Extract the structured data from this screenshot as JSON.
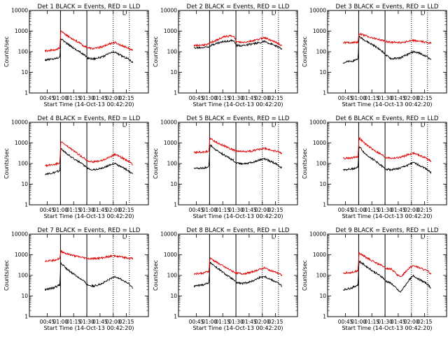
{
  "chart_data": {
    "type": "line",
    "yscale": "log",
    "ylim": [
      1,
      10000
    ],
    "yticks": [
      "1",
      "10",
      "100",
      "1000",
      "10000"
    ],
    "ylabel": "Counts/sec",
    "xlabel": "Start Time (14-Oct-13 00:42:20)",
    "xticks": [
      "00:45",
      "01:00",
      "01:15",
      "01:30",
      "01:45",
      "02:00",
      "02:15"
    ],
    "xlim_minutes": [
      -17.67,
      117.67
    ],
    "tick_minutes": [
      2.67,
      17.67,
      32.67,
      47.67,
      62.67,
      77.67,
      92.67
    ],
    "colors": {
      "events": "#000000",
      "lld": "#e00000"
    },
    "x": [
      0,
      10,
      17,
      18,
      25,
      35,
      45,
      48,
      55,
      65,
      75,
      80,
      85,
      95,
      100
    ],
    "panels": [
      {
        "title": "Det 1 BLACK = Events, RED = LLD",
        "solid_lines": [
          17.67,
          47.67
        ],
        "dotted_lines": [
          77.67,
          96
        ],
        "series": [
          {
            "values": [
              40,
              45,
              55,
              450,
              250,
              130,
              70,
              50,
              45,
              55,
              90,
              95,
              70,
              45,
              30
            ]
          },
          {
            "values": [
              110,
              120,
              150,
              1000,
              600,
              350,
              180,
              160,
              140,
              170,
              260,
              280,
              220,
              150,
              110
            ]
          }
        ]
      },
      {
        "title": "Det 2 BLACK = Events, RED = LLD",
        "solid_lines": [
          17.67,
          47.67
        ],
        "dotted_lines": [
          77.67,
          96
        ],
        "series": [
          {
            "values": [
              150,
              160,
              180,
              200,
              250,
              320,
              350,
              200,
              200,
              230,
              280,
              320,
              260,
              180,
              130
            ]
          },
          {
            "values": [
              200,
              210,
              230,
              270,
              350,
              550,
              600,
              300,
              280,
              330,
              420,
              500,
              400,
              260,
              190
            ]
          }
        ]
      },
      {
        "title": "Det 3 BLACK = Events, RED = LLD",
        "solid_lines": [
          17.67,
          47.67
        ],
        "dotted_lines": [
          77.67,
          96
        ],
        "series": [
          {
            "values": [
              30,
              35,
              45,
              550,
              350,
              200,
              100,
              70,
              45,
              50,
              80,
              100,
              90,
              60,
              40
            ]
          },
          {
            "values": [
              280,
              280,
              290,
              750,
              600,
              450,
              350,
              320,
              290,
              280,
              320,
              350,
              330,
              280,
              260
            ]
          }
        ]
      },
      {
        "title": "Det 4 BLACK = Events, RED = LLD",
        "solid_lines": [
          17.67,
          47.67
        ],
        "dotted_lines": [
          77.67,
          96
        ],
        "series": [
          {
            "values": [
              30,
              35,
              45,
              550,
              300,
              150,
              80,
              60,
              50,
              60,
              90,
              100,
              75,
              45,
              30
            ]
          },
          {
            "values": [
              80,
              90,
              110,
              1200,
              700,
              350,
              180,
              140,
              120,
              140,
              220,
              280,
              220,
              130,
              90
            ]
          }
        ]
      },
      {
        "title": "Det 5 BLACK = Events, RED = LLD",
        "solid_lines": [
          17.67,
          47.67
        ],
        "dotted_lines": [
          77.67,
          96
        ],
        "series": [
          {
            "values": [
              60,
              60,
              70,
              800,
              450,
              250,
              140,
              110,
              100,
              110,
              150,
              170,
              140,
              90,
              60
            ]
          },
          {
            "values": [
              350,
              360,
              400,
              1700,
              1100,
              700,
              450,
              400,
              380,
              400,
              500,
              550,
              480,
              380,
              320
            ]
          }
        ]
      },
      {
        "title": "Det 6 BLACK = Events, RED = LLD",
        "solid_lines": [
          17.67,
          47.67
        ],
        "dotted_lines": [
          77.67,
          96
        ],
        "series": [
          {
            "values": [
              50,
              55,
              65,
              700,
              300,
              150,
              70,
              55,
              50,
              60,
              90,
              110,
              90,
              55,
              35
            ]
          },
          {
            "values": [
              180,
              190,
              220,
              1800,
              900,
              450,
              250,
              200,
              180,
              200,
              280,
              320,
              270,
              180,
              130
            ]
          }
        ]
      },
      {
        "title": "Det 7 BLACK = Events, RED = LLD",
        "solid_lines": [
          17.67,
          47.67
        ],
        "dotted_lines": [
          77.67,
          96
        ],
        "series": [
          {
            "values": [
              20,
              25,
              35,
              400,
              200,
              100,
              50,
              35,
              30,
              40,
              70,
              90,
              70,
              40,
              25
            ]
          },
          {
            "values": [
              500,
              550,
              650,
              1500,
              1100,
              850,
              700,
              650,
              650,
              700,
              850,
              900,
              800,
              700,
              650
            ]
          }
        ]
      },
      {
        "title": "Det 8 BLACK = Events, RED = LLD",
        "solid_lines": [
          17.67,
          47.67
        ],
        "dotted_lines": [
          77.67,
          96
        ],
        "series": [
          {
            "values": [
              30,
              35,
              45,
              450,
              250,
              120,
              60,
              45,
              40,
              50,
              80,
              90,
              70,
              45,
              30
            ]
          },
          {
            "values": [
              120,
              130,
              160,
              700,
              450,
              250,
              150,
              130,
              120,
              140,
              200,
              230,
              190,
              130,
              100
            ]
          }
        ]
      },
      {
        "title": "Det 9 BLACK = Events, RED = LLD",
        "solid_lines": [
          17.67,
          47.67
        ],
        "dotted_lines": [
          77.67,
          96
        ],
        "series": [
          {
            "values": [
              20,
              25,
              35,
              500,
              300,
              150,
              80,
              55,
              40,
              15,
              60,
              95,
              70,
              40,
              25
            ]
          },
          {
            "values": [
              130,
              140,
              170,
              1200,
              800,
              450,
              280,
              220,
              200,
              80,
              230,
              300,
              250,
              170,
              120
            ]
          }
        ]
      }
    ]
  }
}
